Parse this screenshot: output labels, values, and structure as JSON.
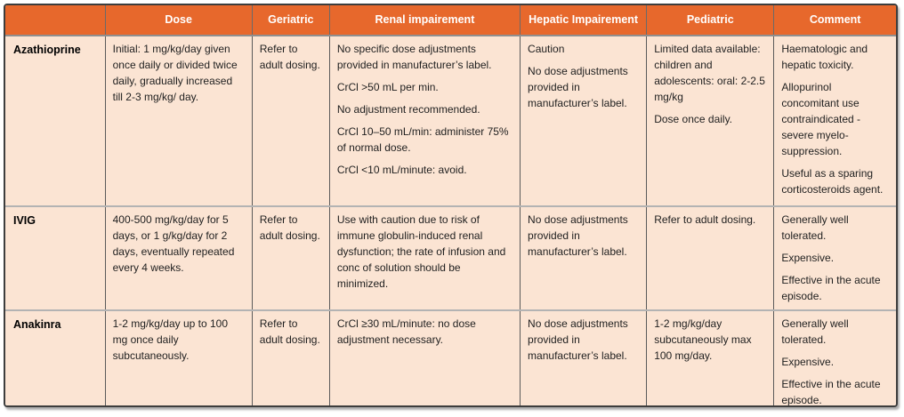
{
  "header": {
    "row_label_column": "",
    "columns": [
      {
        "key": "dose",
        "label": "Dose"
      },
      {
        "key": "geriatric",
        "label": "Geriatric"
      },
      {
        "key": "renal-impairement",
        "label": "Renal impairement"
      },
      {
        "key": "hepatic-impairement",
        "label": "Hepatic Impairement"
      },
      {
        "key": "pediatric",
        "label": "Pediatric"
      },
      {
        "key": "comment",
        "label": "Comment"
      }
    ]
  },
  "rows": [
    {
      "drug": "Azathioprine",
      "cells": [
        [
          "Initial: 1 mg/kg/day given once daily or divided twice daily, gradually increased till 2-3 mg/kg/ day."
        ],
        [
          "Refer to adult dosing."
        ],
        [
          "No specific dose adjustments provided in manufacturer’s label.",
          "CrCl >50 mL per min.",
          "No adjustment recommended.",
          "CrCl 10–50 mL/min: administer 75% of normal dose.",
          "CrCl <10 mL/minute: avoid."
        ],
        [
          "Caution",
          "No dose adjustments provided in manufacturer’s label."
        ],
        [
          "Limited data available: children and adolescents: oral: 2-2.5 mg/kg",
          "Dose once daily."
        ],
        [
          "Haematologic and hepatic toxicity.",
          "Allopurinol concomitant use contraindicated - severe myelo-suppression.",
          "Useful as a sparing corticosteroids agent."
        ]
      ]
    },
    {
      "drug": "IVIG",
      "cells": [
        [
          "400-500 mg/kg/day for 5 days, or 1 g/kg/day for 2 days, eventually repeated every 4 weeks."
        ],
        [
          "Refer to adult dosing."
        ],
        [
          "Use with caution due to risk of immune globulin-induced renal dysfunction; the rate of infusion and conc of solution should be minimized."
        ],
        [
          "No dose adjustments provided in manufacturer’s label."
        ],
        [
          "Refer to adult dosing."
        ],
        [
          "Generally well tolerated.",
          "Expensive.",
          "Effective in the acute episode."
        ]
      ]
    },
    {
      "drug": "Anakinra",
      "cells": [
        [
          "1-2 mg/kg/day up to 100 mg once daily subcutaneously."
        ],
        [
          "Refer to adult dosing."
        ],
        [
          "CrCl ≥30 mL/minute: no dose adjustment necessary."
        ],
        [
          "No dose adjustments provided in manufacturer’s label."
        ],
        [
          "1-2 mg/kg/day subcutaneously max 100 mg/day."
        ],
        [
          "Generally well tolerated.",
          "Expensive.",
          "Effective in the acute episode."
        ]
      ]
    }
  ],
  "colors": {
    "header_bg": "#E7682C",
    "header_text": "#FFFFFF",
    "cell_bg": "#FBE4D3",
    "cell_text": "#1F1F1F",
    "grid_vertical": "#5A5A5A",
    "grid_horizontal": "#B3B3B3",
    "header_separator": "#8F8F8F",
    "outer_border": "#3D3D3D"
  }
}
